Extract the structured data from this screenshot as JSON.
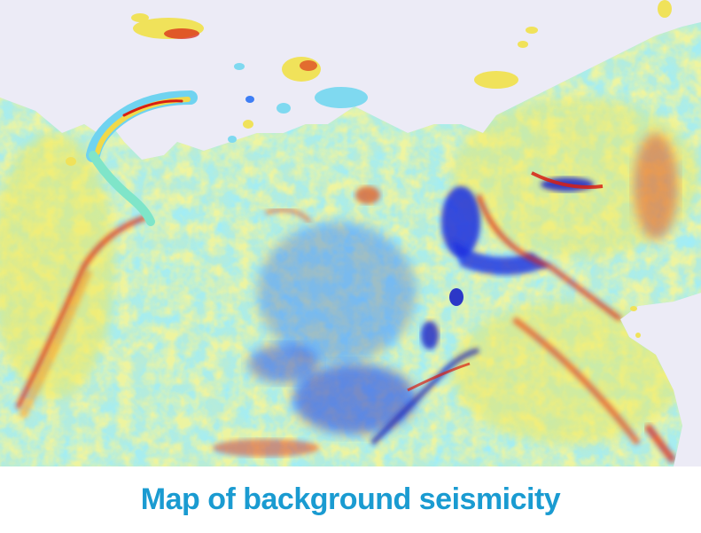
{
  "caption": "Map of background seismicity",
  "colors": {
    "sea": "#ecebf6",
    "caption_text": "#1a9bd1",
    "scale_low": "#1f2fe0",
    "scale_mid_low": "#3fc0ff",
    "scale_mid": "#7fe5c9",
    "scale_mid_high": "#f2ec4a",
    "scale_high": "#d81e12"
  },
  "map": {
    "layer": "background-seismicity",
    "color_scale": [
      "#1f2fe0",
      "#3fc0ff",
      "#7fe5c9",
      "#f2ec4a",
      "#d81e12"
    ]
  }
}
